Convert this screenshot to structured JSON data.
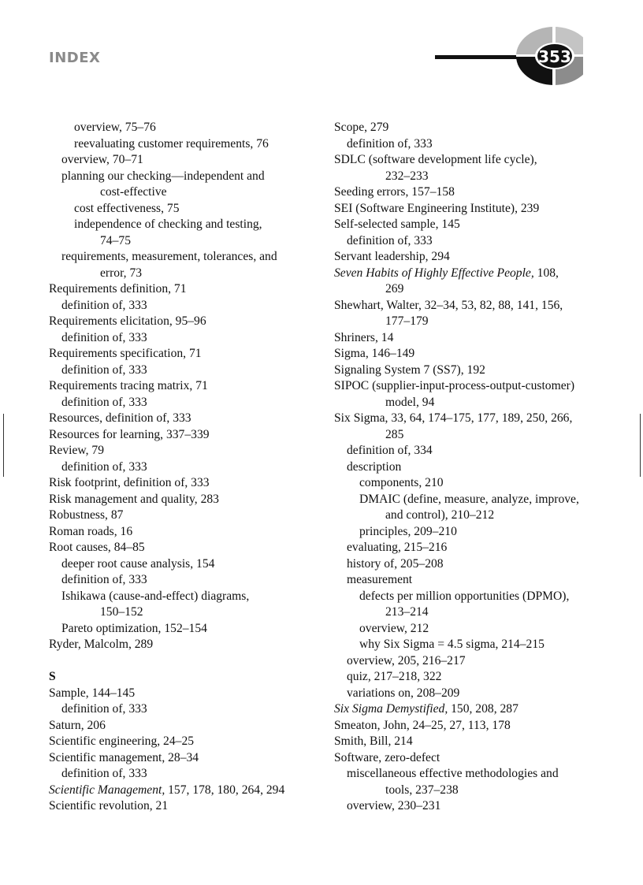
{
  "header": {
    "title": "INDEX",
    "page_number": "353"
  },
  "left_column": [
    {
      "c": "l2",
      "t": "overview, 75–76"
    },
    {
      "c": "l2",
      "t": "reevaluating customer requirements, 76"
    },
    {
      "c": "l1",
      "t": "overview, 70–71"
    },
    {
      "c": "l1",
      "t": "planning our checking—independent and"
    },
    {
      "c": "w",
      "t": "cost-effective"
    },
    {
      "c": "l2",
      "t": "cost effectiveness, 75"
    },
    {
      "c": "l2",
      "t": "independence of checking and testing,"
    },
    {
      "c": "w",
      "t": "74–75"
    },
    {
      "c": "l1",
      "t": "requirements, measurement, tolerances, and"
    },
    {
      "c": "w",
      "t": "error, 73"
    },
    {
      "c": "l0",
      "t": "Requirements definition, 71"
    },
    {
      "c": "l1",
      "t": "definition of, 333"
    },
    {
      "c": "l0",
      "t": "Requirements elicitation, 95–96"
    },
    {
      "c": "l1",
      "t": "definition of, 333"
    },
    {
      "c": "l0",
      "t": "Requirements specification, 71"
    },
    {
      "c": "l1",
      "t": "definition of, 333"
    },
    {
      "c": "l0",
      "t": "Requirements tracing matrix, 71"
    },
    {
      "c": "l1",
      "t": "definition of, 333"
    },
    {
      "c": "l0",
      "t": "Resources, definition of, 333"
    },
    {
      "c": "l0",
      "t": "Resources for learning, 337–339"
    },
    {
      "c": "l0",
      "t": "Review, 79"
    },
    {
      "c": "l1",
      "t": "definition of, 333"
    },
    {
      "c": "l0",
      "t": "Risk footprint, definition of, 333"
    },
    {
      "c": "l0",
      "t": "Risk management and quality, 283"
    },
    {
      "c": "l0",
      "t": "Robustness, 87"
    },
    {
      "c": "l0",
      "t": "Roman roads, 16"
    },
    {
      "c": "l0",
      "t": "Root causes, 84–85"
    },
    {
      "c": "l1",
      "t": "deeper root cause analysis, 154"
    },
    {
      "c": "l1",
      "t": "definition of, 333"
    },
    {
      "c": "l1",
      "t": "Ishikawa (cause-and-effect) diagrams,"
    },
    {
      "c": "w",
      "t": "150–152"
    },
    {
      "c": "l1",
      "t": "Pareto optimization, 152–154"
    },
    {
      "c": "l0",
      "t": "Ryder, Malcolm, 289"
    },
    {
      "c": "blank",
      "t": ""
    },
    {
      "c": "l0 head",
      "t": "S"
    },
    {
      "c": "l0",
      "t": "Sample, 144–145"
    },
    {
      "c": "l1",
      "t": "definition of, 333"
    },
    {
      "c": "l0",
      "t": "Saturn, 206"
    },
    {
      "c": "l0",
      "t": "Scientific engineering, 24–25"
    },
    {
      "c": "l0",
      "t": "Scientific management, 28–34"
    },
    {
      "c": "l1",
      "t": "definition of, 333"
    },
    {
      "c": "l0",
      "it": "Scientific Management,",
      "t": " 157, 178, 180, 264, 294"
    },
    {
      "c": "l0",
      "t": "Scientific revolution, 21"
    }
  ],
  "right_column": [
    {
      "c": "l0",
      "t": "Scope, 279"
    },
    {
      "c": "l1",
      "t": "definition of, 333"
    },
    {
      "c": "l0",
      "t": "SDLC (software development life cycle),"
    },
    {
      "c": "w",
      "t": "232–233"
    },
    {
      "c": "l0",
      "t": "Seeding errors, 157–158"
    },
    {
      "c": "l0",
      "t": "SEI (Software Engineering Institute), 239"
    },
    {
      "c": "l0",
      "t": "Self-selected sample, 145"
    },
    {
      "c": "l1",
      "t": "definition of, 333"
    },
    {
      "c": "l0",
      "t": "Servant leadership, 294"
    },
    {
      "c": "l0",
      "it": "Seven Habits of Highly Effective People,",
      "t": " 108,"
    },
    {
      "c": "w",
      "t": "269"
    },
    {
      "c": "l0",
      "t": "Shewhart, Walter, 32–34, 53, 82, 88, 141, 156,"
    },
    {
      "c": "w",
      "t": "177–179"
    },
    {
      "c": "l0",
      "t": "Shriners, 14"
    },
    {
      "c": "l0",
      "t": "Sigma, 146–149"
    },
    {
      "c": "l0",
      "t": "Signaling System 7 (SS7), 192"
    },
    {
      "c": "l0",
      "t": "SIPOC (supplier-input-process-output-customer)"
    },
    {
      "c": "w",
      "t": "model, 94"
    },
    {
      "c": "l0",
      "t": "Six Sigma, 33, 64, 174–175, 177, 189, 250, 266,"
    },
    {
      "c": "w",
      "t": "285"
    },
    {
      "c": "l1",
      "t": "definition of, 334"
    },
    {
      "c": "l1",
      "t": "description"
    },
    {
      "c": "l2",
      "t": "components, 210"
    },
    {
      "c": "l2",
      "t": "DMAIC (define, measure, analyze, improve,"
    },
    {
      "c": "w",
      "t": "and control), 210–212"
    },
    {
      "c": "l2",
      "t": "principles, 209–210"
    },
    {
      "c": "l1",
      "t": "evaluating, 215–216"
    },
    {
      "c": "l1",
      "t": "history of, 205–208"
    },
    {
      "c": "l1",
      "t": "measurement"
    },
    {
      "c": "l2",
      "t": "defects per million opportunities (DPMO),"
    },
    {
      "c": "w",
      "t": "213–214"
    },
    {
      "c": "l2",
      "t": "overview, 212"
    },
    {
      "c": "l2",
      "t": "why Six Sigma = 4.5 sigma, 214–215"
    },
    {
      "c": "l1",
      "t": "overview, 205, 216–217"
    },
    {
      "c": "l1",
      "t": "quiz, 217–218, 322"
    },
    {
      "c": "l1",
      "t": "variations on, 208–209"
    },
    {
      "c": "l0",
      "it": "Six Sigma Demystified,",
      "t": " 150, 208, 287"
    },
    {
      "c": "l0",
      "t": "Smeaton, John, 24–25, 27, 113, 178"
    },
    {
      "c": "l0",
      "t": "Smith, Bill, 214"
    },
    {
      "c": "l0",
      "t": "Software, zero-defect"
    },
    {
      "c": "l1",
      "t": "miscellaneous effective methodologies and"
    },
    {
      "c": "w",
      "t": "tools, 237–238"
    },
    {
      "c": "l1",
      "t": "overview, 230–231"
    }
  ]
}
